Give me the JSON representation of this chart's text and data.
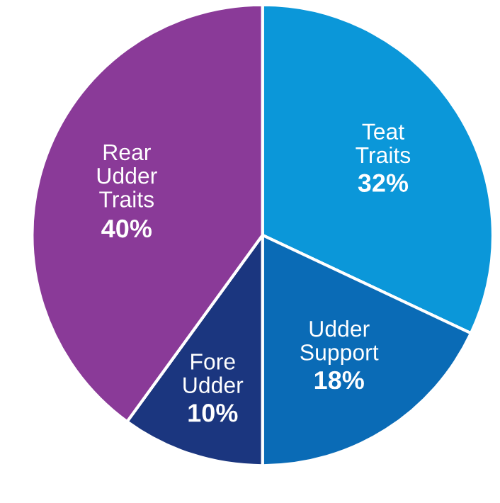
{
  "chart_data": {
    "type": "pie",
    "categories": [
      "Teat\nTraits",
      "Udder\nSupport",
      "Fore\nUdder",
      "Rear\nUdder\nTraits"
    ],
    "values": [
      32,
      18,
      10,
      40
    ],
    "value_labels": [
      "32%",
      "18%",
      "10%",
      "40%"
    ],
    "colors": [
      "#0b97d9",
      "#0a6bb6",
      "#1b367f",
      "#8a3a98"
    ]
  }
}
